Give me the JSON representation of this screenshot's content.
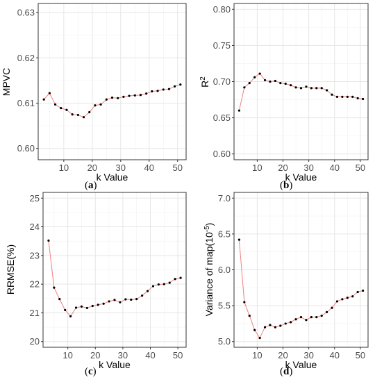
{
  "chart_data": [
    {
      "type": "line",
      "caption": "a",
      "xlabel": "k Value",
      "ylabel": "MPVC",
      "xlim": [
        1,
        53
      ],
      "ylim": [
        0.5975,
        0.632
      ],
      "xticks": [
        10,
        20,
        30,
        40,
        50
      ],
      "yticks": [
        0.6,
        0.61,
        0.62,
        0.63
      ],
      "ytick_labels": [
        "0.60",
        "0.61",
        "0.62",
        "0.63"
      ],
      "grid": true,
      "line_color": "#f08080",
      "point_color": "#000000",
      "x": [
        3,
        5,
        7,
        9,
        11,
        13,
        15,
        17,
        19,
        21,
        23,
        25,
        27,
        29,
        31,
        33,
        35,
        37,
        39,
        41,
        43,
        45,
        47,
        49,
        51
      ],
      "y": [
        0.6108,
        0.6122,
        0.6097,
        0.6089,
        0.6085,
        0.6075,
        0.6074,
        0.6069,
        0.608,
        0.6095,
        0.6097,
        0.6108,
        0.6112,
        0.6111,
        0.6114,
        0.6116,
        0.6117,
        0.6118,
        0.6121,
        0.6126,
        0.6127,
        0.613,
        0.6131,
        0.6137,
        0.6141
      ]
    },
    {
      "type": "line",
      "caption": "b",
      "xlabel": "k Value",
      "ylabel": "R",
      "ylabel_sup": "2",
      "xlim": [
        1,
        53
      ],
      "ylim": [
        0.592,
        0.808
      ],
      "xticks": [
        10,
        20,
        30,
        40,
        50
      ],
      "yticks": [
        0.6,
        0.65,
        0.7,
        0.75,
        0.8
      ],
      "ytick_labels": [
        "0.60",
        "0.65",
        "0.70",
        "0.75",
        "0.80"
      ],
      "grid": true,
      "line_color": "#f08080",
      "point_color": "#000000",
      "x": [
        3,
        5,
        7,
        9,
        11,
        13,
        15,
        17,
        19,
        21,
        23,
        25,
        27,
        29,
        31,
        33,
        35,
        37,
        39,
        41,
        43,
        45,
        47,
        49,
        51
      ],
      "y": [
        0.66,
        0.692,
        0.698,
        0.706,
        0.711,
        0.702,
        0.7,
        0.701,
        0.698,
        0.697,
        0.695,
        0.692,
        0.691,
        0.693,
        0.691,
        0.691,
        0.691,
        0.688,
        0.682,
        0.679,
        0.679,
        0.679,
        0.679,
        0.677,
        0.676
      ]
    },
    {
      "type": "line",
      "caption": "c",
      "xlabel": "k Value",
      "ylabel": "RRMSE(%)",
      "xlim": [
        1,
        53
      ],
      "ylim": [
        19.8,
        25.2
      ],
      "xticks": [
        10,
        20,
        30,
        40,
        50
      ],
      "yticks": [
        20,
        21,
        22,
        23,
        24,
        25
      ],
      "ytick_labels": [
        "20",
        "21",
        "22",
        "23",
        "24",
        "25"
      ],
      "grid": true,
      "line_color": "#f08080",
      "point_color": "#000000",
      "x": [
        3,
        5,
        7,
        9,
        11,
        13,
        15,
        17,
        19,
        21,
        23,
        25,
        27,
        29,
        31,
        33,
        35,
        37,
        39,
        41,
        43,
        45,
        47,
        49,
        51
      ],
      "y": [
        23.52,
        21.88,
        21.48,
        21.1,
        20.88,
        21.18,
        21.22,
        21.17,
        21.24,
        21.28,
        21.32,
        21.4,
        21.45,
        21.37,
        21.47,
        21.46,
        21.48,
        21.6,
        21.76,
        21.93,
        21.99,
        22.0,
        22.05,
        22.18,
        22.22
      ]
    },
    {
      "type": "line",
      "caption": "d",
      "xlabel": "k Value",
      "ylabel": "Variance of map(10",
      "ylabel_sup": "-5",
      "ylabel_tail": ")",
      "xlim": [
        1,
        53
      ],
      "ylim": [
        4.92,
        7.08
      ],
      "xticks": [
        10,
        20,
        30,
        40,
        50
      ],
      "yticks": [
        5.0,
        5.5,
        6.0,
        6.5,
        7.0
      ],
      "ytick_labels": [
        "5.0",
        "5.5",
        "6.0",
        "6.5",
        "7.0"
      ],
      "grid": true,
      "line_color": "#f08080",
      "point_color": "#000000",
      "x": [
        3,
        5,
        7,
        9,
        11,
        13,
        15,
        17,
        19,
        21,
        23,
        25,
        27,
        29,
        31,
        33,
        35,
        37,
        39,
        41,
        43,
        45,
        47,
        49,
        51
      ],
      "y": [
        6.42,
        5.55,
        5.36,
        5.16,
        5.05,
        5.2,
        5.23,
        5.2,
        5.22,
        5.25,
        5.27,
        5.31,
        5.34,
        5.3,
        5.34,
        5.34,
        5.36,
        5.41,
        5.47,
        5.56,
        5.59,
        5.61,
        5.63,
        5.69,
        5.71
      ]
    }
  ]
}
